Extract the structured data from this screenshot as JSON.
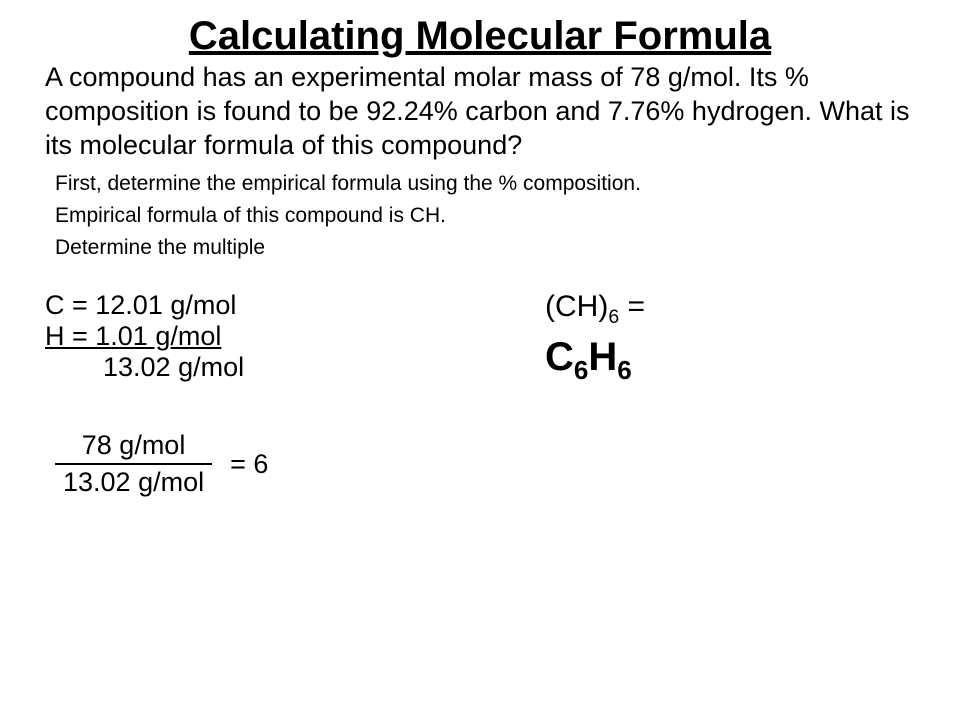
{
  "title": "Calculating Molecular Formula",
  "problem": "A compound has an experimental molar mass of 78 g/mol. Its % composition is found to be 92.24% carbon and 7.76% hydrogen.  What is its molecular formula of this compound?",
  "steps": {
    "s1": "First, determine the empirical formula using the % composition.",
    "s2": "Empirical formula of this compound is CH.",
    "s3": "Determine the multiple"
  },
  "masses": {
    "carbon": "C = 12.01 g/mol",
    "hydrogen": "H =  1.01 g/mol",
    "sum": "13.02 g/mol"
  },
  "fraction": {
    "numerator": "78 g/mol",
    "denominator": "13.02 g/mol",
    "equals": "= 6"
  },
  "result": {
    "empirical_times_prefix": "(CH)",
    "empirical_times_sub": "6",
    "empirical_times_suffix": " =",
    "final_c": "C",
    "final_c_sub": "6",
    "final_h": "H",
    "final_h_sub": "6"
  },
  "colors": {
    "background": "#ffffff",
    "text": "#000000"
  },
  "typography": {
    "title_fontsize": 40,
    "body_fontsize": 27,
    "step_fontsize": 21,
    "final_fontsize": 40
  }
}
